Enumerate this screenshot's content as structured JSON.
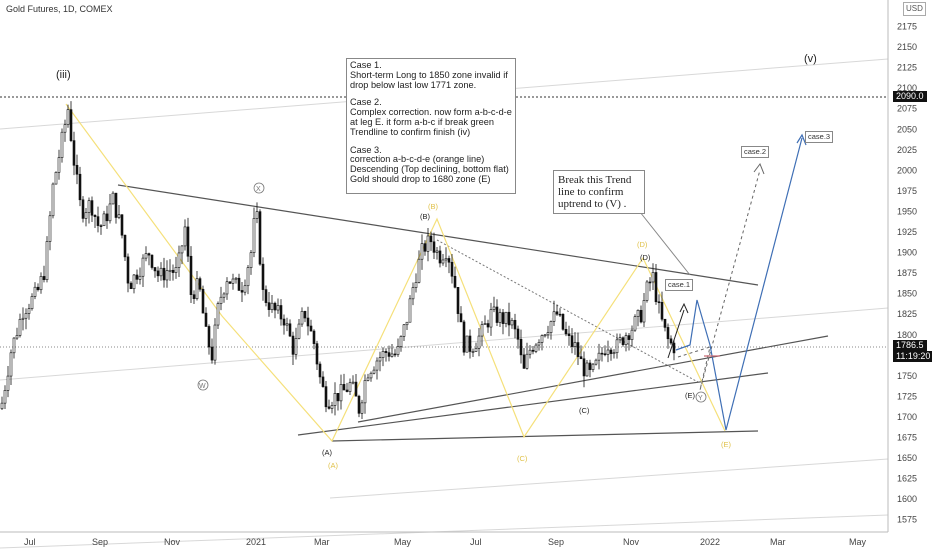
{
  "header": {
    "title": "Gold Futures, 1D, COMEX",
    "currency": "USD"
  },
  "price_tags": {
    "dotted_level": "2090.0",
    "last_price": "1786.5",
    "countdown": "11:19:20"
  },
  "notes": {
    "case1": "Case 1.\nShort-term  Long to 1850 zone invalid if drop below last low 1771 zone.",
    "case2": "Case 2.\nComplex correction. now form a-b-c-d-e at leg E. it form  a-b-c  if break green Trendline to confirm finish (iv)",
    "case3": "Case 3.\ncorrection a-b-c-d-e (orange line)\nDescending (Top declining, bottom flat)\nGold should drop to 1680 zone (E)"
  },
  "callout": "Break this Trend line to confirm uptrend to (V) .",
  "case_labels": {
    "case1": "case.1",
    "case2": "case.2",
    "case3": "case.3"
  },
  "wave_labels": {
    "iii": "(iii)",
    "v": "(v)",
    "X": "X",
    "W": "W",
    "Y": "Y",
    "A_black": "(A)",
    "A_yellow": "(A)",
    "B_black": "(B)",
    "B_yellow": "(B)",
    "C_black": "(C)",
    "C_yellow": "(C)",
    "D_black": "(D)",
    "D_yellow": "(D)",
    "E_black": "(E)",
    "E_yellow": "(E)"
  },
  "colors": {
    "up_candle": "#ffffff",
    "down_candle": "#111111",
    "trendline": "#555555",
    "wave_yellow": "#f5e07a",
    "projection_blue": "#3f6fb5",
    "grid_channel": "#d8d8d8"
  },
  "chart_data": {
    "type": "candlestick",
    "title": "Gold Futures, 1D, COMEX",
    "ylim": [
      1560,
      2200
    ],
    "y_ticks": [
      1575,
      1600,
      1625,
      1650,
      1675,
      1700,
      1725,
      1750,
      1775,
      1800,
      1825,
      1850,
      1875,
      1900,
      1925,
      1950,
      1975,
      2000,
      2025,
      2050,
      2075,
      2100,
      2125,
      2150,
      2175
    ],
    "x_ticks": [
      "Jul",
      "Sep",
      "Nov",
      "2021",
      "Mar",
      "May",
      "Jul",
      "Sep",
      "Nov",
      "2022",
      "Mar",
      "May"
    ],
    "path": [
      [
        0,
        1710
      ],
      [
        10,
        1780
      ],
      [
        22,
        1830
      ],
      [
        36,
        1850
      ],
      [
        44,
        1880
      ],
      [
        52,
        1980
      ],
      [
        60,
        2030
      ],
      [
        67,
        2075
      ],
      [
        72,
        2020
      ],
      [
        80,
        1950
      ],
      [
        90,
        1960
      ],
      [
        98,
        1930
      ],
      [
        104,
        1940
      ],
      [
        112,
        1965
      ],
      [
        120,
        1930
      ],
      [
        128,
        1860
      ],
      [
        138,
        1880
      ],
      [
        148,
        1900
      ],
      [
        158,
        1870
      ],
      [
        168,
        1880
      ],
      [
        176,
        1875
      ],
      [
        184,
        1930
      ],
      [
        190,
        1850
      ],
      [
        198,
        1860
      ],
      [
        205,
        1800
      ],
      [
        211,
        1775
      ],
      [
        218,
        1840
      ],
      [
        226,
        1870
      ],
      [
        234,
        1860
      ],
      [
        242,
        1860
      ],
      [
        250,
        1900
      ],
      [
        255,
        1955
      ],
      [
        262,
        1850
      ],
      [
        272,
        1830
      ],
      [
        283,
        1820
      ],
      [
        293,
        1780
      ],
      [
        303,
        1830
      ],
      [
        313,
        1790
      ],
      [
        320,
        1740
      ],
      [
        326,
        1720
      ],
      [
        334,
        1725
      ],
      [
        342,
        1730
      ],
      [
        350,
        1740
      ],
      [
        358,
        1710
      ],
      [
        366,
        1755
      ],
      [
        376,
        1770
      ],
      [
        386,
        1780
      ],
      [
        396,
        1775
      ],
      [
        406,
        1820
      ],
      [
        414,
        1870
      ],
      [
        422,
        1905
      ],
      [
        430,
        1915
      ],
      [
        438,
        1895
      ],
      [
        446,
        1905
      ],
      [
        454,
        1860
      ],
      [
        462,
        1790
      ],
      [
        470,
        1785
      ],
      [
        480,
        1800
      ],
      [
        490,
        1825
      ],
      [
        500,
        1820
      ],
      [
        510,
        1815
      ],
      [
        518,
        1790
      ],
      [
        522,
        1750
      ],
      [
        528,
        1780
      ],
      [
        536,
        1795
      ],
      [
        546,
        1810
      ],
      [
        556,
        1825
      ],
      [
        566,
        1795
      ],
      [
        574,
        1785
      ],
      [
        582,
        1760
      ],
      [
        590,
        1750
      ],
      [
        598,
        1770
      ],
      [
        606,
        1790
      ],
      [
        616,
        1785
      ],
      [
        624,
        1800
      ],
      [
        632,
        1810
      ],
      [
        640,
        1825
      ],
      [
        647,
        1860
      ],
      [
        652,
        1870
      ],
      [
        657,
        1835
      ],
      [
        662,
        1810
      ],
      [
        668,
        1790
      ],
      [
        674,
        1785
      ]
    ]
  }
}
